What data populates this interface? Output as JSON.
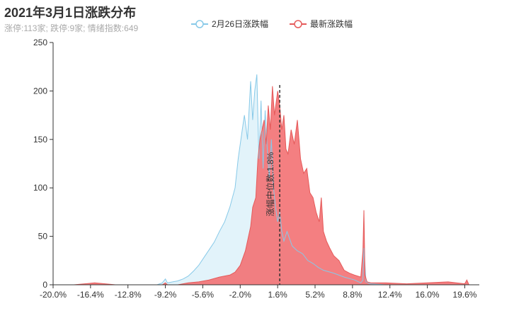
{
  "title": "2021年3月1日涨跌分布",
  "subtitle": "涨停:113家; 跌停:9家; 情绪指数:649",
  "chart_data": {
    "type": "area",
    "title": "2021年3月1日涨跌分布",
    "subtitle": "涨停:113家; 跌停:9家; 情绪指数:649",
    "xlim": [
      -20.0,
      21.0
    ],
    "ylim": [
      0,
      250
    ],
    "yticks": [
      0,
      50,
      100,
      150,
      200,
      250
    ],
    "xticks": [
      -20.0,
      -16.4,
      -12.8,
      -9.2,
      -5.6,
      -2.0,
      1.6,
      5.2,
      8.8,
      12.4,
      16.0,
      19.6
    ],
    "xtick_labels": [
      "-20.0%",
      "-16.4%",
      "-12.8%",
      "-9.2%",
      "-5.6%",
      "-2.0%",
      "1.6%",
      "5.2%",
      "8.8%",
      "12.4%",
      "16.0%",
      "19.6%"
    ],
    "legend_position": "top-center",
    "series": [
      {
        "name": "2月26日涨跌幅",
        "color": "#87c9e8",
        "fill": "#dff2fa",
        "x": [
          -20,
          -18,
          -16,
          -14,
          -12,
          -10,
          -9.5,
          -9.2,
          -9.0,
          -8.5,
          -8,
          -7.5,
          -7,
          -6.5,
          -6,
          -5.5,
          -5,
          -4.5,
          -4,
          -3.5,
          -3,
          -2.5,
          -2.2,
          -2.0,
          -1.8,
          -1.6,
          -1.3,
          -1.0,
          -0.8,
          -0.6,
          -0.4,
          -0.2,
          0.0,
          0.2,
          0.4,
          0.6,
          0.8,
          1.0,
          1.2,
          1.4,
          1.6,
          1.8,
          2.0,
          2.2,
          2.5,
          3.0,
          3.5,
          4.0,
          4.5,
          5.0,
          5.5,
          6.0,
          7.0,
          8.0,
          9.0,
          9.6,
          9.8,
          9.9,
          10.1,
          10.5,
          12,
          14,
          16,
          18,
          21
        ],
        "y": [
          0,
          0,
          0,
          0,
          0,
          0,
          2,
          6,
          2,
          3,
          4,
          6,
          9,
          14,
          20,
          28,
          36,
          44,
          55,
          65,
          80,
          100,
          130,
          145,
          160,
          175,
          150,
          210,
          170,
          200,
          217,
          130,
          190,
          120,
          180,
          140,
          110,
          150,
          100,
          80,
          65,
          75,
          55,
          45,
          55,
          40,
          35,
          32,
          25,
          22,
          18,
          15,
          12,
          8,
          5,
          2,
          5,
          38,
          3,
          1,
          0,
          0,
          0,
          0,
          0
        ]
      },
      {
        "name": "最新涨跌幅",
        "color": "#e55a5a",
        "fill": "#f26d70",
        "x": [
          -20,
          -18,
          -16,
          -14,
          -12,
          -10,
          -9.5,
          -9.2,
          -9.0,
          -8,
          -7,
          -6,
          -5,
          -4,
          -3,
          -2.5,
          -2.0,
          -1.5,
          -1.0,
          -0.8,
          -0.5,
          -0.3,
          -0.1,
          0.1,
          0.3,
          0.5,
          0.7,
          0.9,
          1.1,
          1.3,
          1.6,
          1.8,
          2.0,
          2.2,
          2.4,
          2.6,
          2.9,
          3.2,
          3.5,
          3.8,
          4.1,
          4.4,
          4.7,
          5.0,
          5.3,
          5.6,
          5.8,
          6.0,
          6.3,
          6.6,
          7.0,
          7.5,
          8.0,
          8.5,
          9.0,
          9.6,
          9.8,
          9.9,
          10.0,
          10.2,
          10.6,
          12,
          14,
          16,
          18,
          19.6,
          19.8,
          20,
          21
        ],
        "y": [
          0,
          0,
          2,
          0,
          0,
          0,
          0,
          2,
          0,
          0,
          2,
          3,
          5,
          8,
          10,
          13,
          20,
          35,
          60,
          80,
          90,
          130,
          150,
          160,
          170,
          145,
          185,
          160,
          205,
          175,
          200,
          185,
          160,
          175,
          140,
          135,
          160,
          145,
          170,
          130,
          115,
          120,
          95,
          90,
          75,
          65,
          90,
          55,
          45,
          38,
          30,
          25,
          15,
          12,
          10,
          8,
          35,
          77,
          10,
          3,
          2,
          2,
          1,
          2,
          3,
          1,
          5,
          0,
          0
        ]
      }
    ],
    "annotation": {
      "text": "涨幅中位数:1.8%",
      "x": 1.8
    }
  }
}
